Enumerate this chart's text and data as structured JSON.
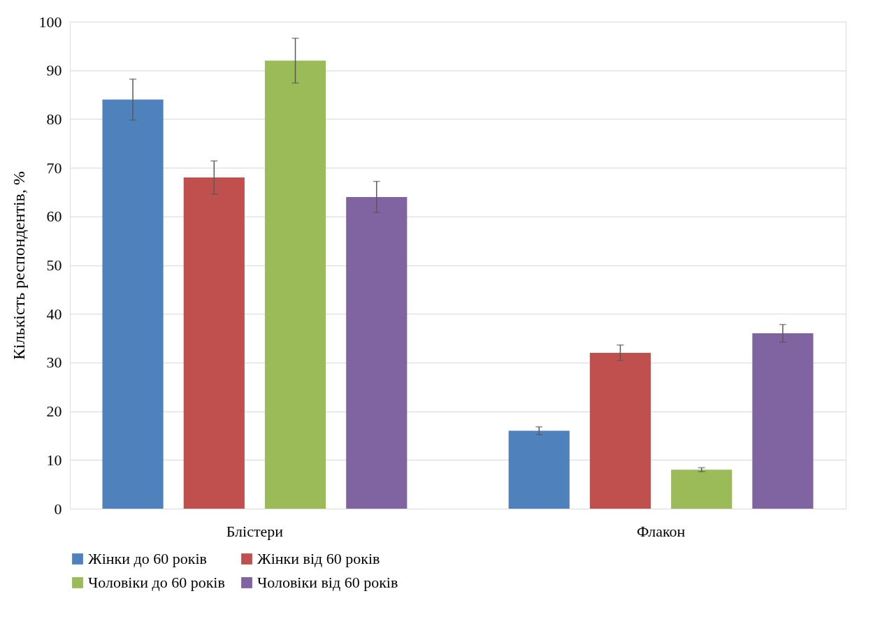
{
  "chart_data": {
    "type": "bar",
    "ylabel": "Кількість  респондентів, %",
    "categories": [
      "Блістери",
      "Флакон"
    ],
    "series": [
      {
        "name": "Жінки до 60 років",
        "color": "#4f81bd",
        "values": [
          84,
          16
        ],
        "errors": [
          4.2,
          0.8
        ]
      },
      {
        "name": "Жінки від 60 років",
        "color": "#c0504d",
        "values": [
          68,
          32
        ],
        "errors": [
          3.4,
          1.6
        ]
      },
      {
        "name": "Чоловіки до 60 років",
        "color": "#9bbb59",
        "values": [
          92,
          8
        ],
        "errors": [
          4.6,
          0.4
        ]
      },
      {
        "name": "Чоловіки від 60 років",
        "color": "#8064a2",
        "values": [
          64,
          36
        ],
        "errors": [
          3.2,
          1.8
        ]
      }
    ],
    "ylim": [
      0,
      100
    ],
    "yticks": [
      0,
      10,
      20,
      30,
      40,
      50,
      60,
      70,
      80,
      90,
      100
    ],
    "grid": "y",
    "legend": "bottom"
  }
}
